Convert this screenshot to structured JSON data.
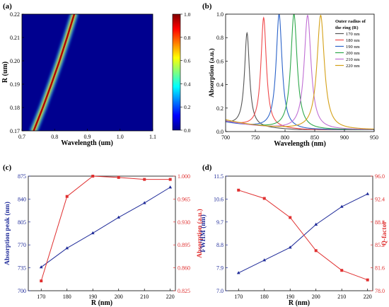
{
  "panels": {
    "a": {
      "label": "(a)"
    },
    "b": {
      "label": "(b)"
    },
    "c": {
      "label": "(c)"
    },
    "d": {
      "label": "(d)"
    }
  },
  "chart_data": [
    {
      "panel": "(a)",
      "type": "heatmap",
      "xlabel": "Wavelength (um)",
      "ylabel": "R (um)",
      "xlim": [
        0.7,
        1.1
      ],
      "ylim": [
        0.17,
        0.22
      ],
      "xticks": [
        "0.7",
        "0.8",
        "0.9",
        "1.0",
        "1.1"
      ],
      "yticks": [
        "0.17",
        "0.18",
        "0.19",
        "0.20",
        "0.21",
        "0.22"
      ],
      "colorbar": {
        "min": 0.0,
        "max": 1.0,
        "ticks": [
          "0.0",
          "0.2",
          "0.4",
          "0.6",
          "0.8",
          "1.0"
        ]
      },
      "resonance_band": {
        "R": [
          0.17,
          0.18,
          0.19,
          0.2,
          0.21,
          0.22
        ],
        "wavelength": [
          0.736,
          0.764,
          0.79,
          0.815,
          0.838,
          0.86
        ]
      },
      "grid": false
    },
    {
      "panel": "(b)",
      "type": "line",
      "xlabel": "Wavelength (nm)",
      "ylabel": "Absorption (a.u.)",
      "xlim": [
        700,
        950
      ],
      "ylim": [
        0.0,
        1.0
      ],
      "xticks": [
        "700",
        "750",
        "800",
        "850",
        "900",
        "950"
      ],
      "yticks": [
        "0.0",
        "0.2",
        "0.4",
        "0.6",
        "0.8",
        "1.0"
      ],
      "legend_title": [
        "Outer radius of",
        "the ring (R)"
      ],
      "legend_position": "top-right",
      "series": [
        {
          "name": "170 nm",
          "color": "#555555",
          "peak_x": 736,
          "peak_y": 0.84,
          "base_left": 0.07,
          "width": 5
        },
        {
          "name": "180 nm",
          "color": "#f0484a",
          "peak_x": 764,
          "peak_y": 0.97,
          "base_left": 0.08,
          "width": 5.5
        },
        {
          "name": "190 nm",
          "color": "#2b63c9",
          "peak_x": 790,
          "peak_y": 1.0,
          "base_left": 0.08,
          "width": 6
        },
        {
          "name": "200 nm",
          "color": "#2ea84b",
          "peak_x": 815,
          "peak_y": 1.0,
          "base_left": 0.09,
          "width": 6.5
        },
        {
          "name": "210 nm",
          "color": "#c06fd4",
          "peak_x": 838,
          "peak_y": 0.99,
          "base_left": 0.09,
          "width": 7
        },
        {
          "name": "220 nm",
          "color": "#d4a017",
          "peak_x": 860,
          "peak_y": 0.99,
          "base_left": 0.1,
          "width": 7.5
        }
      ],
      "grid": false
    },
    {
      "panel": "(c)",
      "type": "line",
      "xlabel": "R (nm)",
      "ylabel_left": "Absorption peak (nm)",
      "ylabel_right": "Absorption (a.u.)",
      "x": [
        170,
        180,
        190,
        200,
        210,
        220
      ],
      "xlim": [
        165,
        222
      ],
      "xticks": [
        "170",
        "180",
        "190",
        "200",
        "210",
        "220"
      ],
      "ylim_left": [
        700,
        875
      ],
      "yticks_left": [
        "700",
        "735",
        "770",
        "805",
        "840",
        "875"
      ],
      "ylim_right": [
        0.825,
        1.0
      ],
      "yticks_right": [
        "0.825",
        "0.860",
        "0.895",
        "0.930",
        "0.965",
        "1.000"
      ],
      "series": [
        {
          "axis": "left",
          "color": "#1f2b99",
          "marker": "triangle",
          "values": [
            736,
            765,
            788,
            812,
            834,
            858
          ]
        },
        {
          "axis": "right",
          "color": "#e03030",
          "marker": "square",
          "values": [
            0.84,
            0.969,
            1.0,
            0.998,
            0.995,
            0.995
          ]
        }
      ],
      "grid": false
    },
    {
      "panel": "(d)",
      "type": "line",
      "xlabel": "R (nm)",
      "ylabel_left": "FWHM (nm)",
      "ylabel_right": "Q-factor",
      "x": [
        170,
        180,
        190,
        200,
        210,
        220
      ],
      "xlim": [
        165,
        222
      ],
      "xticks": [
        "170",
        "180",
        "190",
        "200",
        "210",
        "220"
      ],
      "ylim_left": [
        7.0,
        11.5
      ],
      "yticks_left": [
        "7.0",
        "7.9",
        "8.8",
        "9.7",
        "10.6",
        "11.5"
      ],
      "ylim_right": [
        78.0,
        96.0
      ],
      "yticks_right": [
        "78.0",
        "81.6",
        "85.2",
        "88.8",
        "92.4",
        "96.0"
      ],
      "series": [
        {
          "axis": "left",
          "color": "#1f2b99",
          "marker": "triangle",
          "values": [
            7.7,
            8.2,
            8.7,
            9.6,
            10.3,
            10.8
          ]
        },
        {
          "axis": "right",
          "color": "#e03030",
          "marker": "square",
          "values": [
            93.8,
            92.5,
            89.5,
            84.3,
            81.2,
            79.7
          ]
        }
      ],
      "grid": false
    }
  ]
}
